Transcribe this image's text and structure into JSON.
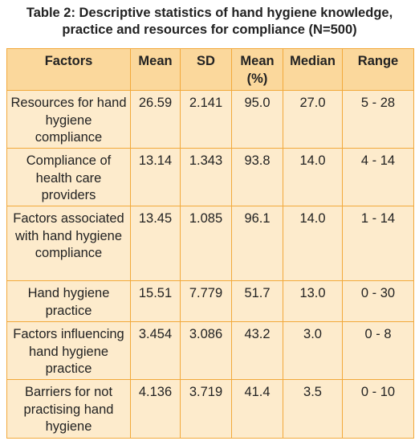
{
  "title": "Table 2: Descriptive statistics of hand hygiene knowledge, practice and resources for compliance (N=500)",
  "table": {
    "header": [
      "Factors",
      "Mean",
      "SD",
      "Mean (%)",
      "Median",
      "Range"
    ],
    "rows": [
      [
        "Resources for hand hygiene compliance",
        "26.59",
        "2.141",
        "95.0",
        "27.0",
        "5 - 28"
      ],
      [
        "Compliance of health care providers",
        "13.14",
        "1.343",
        "93.8",
        "14.0",
        "4 - 14"
      ],
      [
        "Factors associated with hand hygiene compliance",
        "13.45",
        "1.085",
        "96.1",
        "14.0",
        "1 - 14"
      ],
      [
        "Hand hygiene practice",
        "15.51",
        "7.779",
        "51.7",
        "13.0",
        "0 - 30"
      ],
      [
        "Factors influencing hand hygiene practice",
        "3.454",
        "3.086",
        "43.2",
        "3.0",
        "0 - 8"
      ],
      [
        "Barriers for not practising hand hygiene",
        "4.136",
        "3.719",
        "41.4",
        "3.5",
        "0 - 10"
      ]
    ]
  }
}
